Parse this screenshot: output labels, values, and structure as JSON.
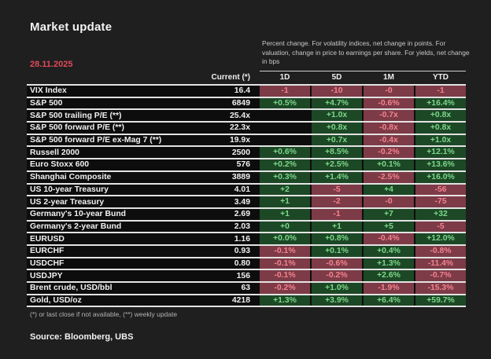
{
  "header": {
    "title": "Market update",
    "date": "28.11.2025",
    "note": "Percent change. For volatility indices, net change in points. For valuation, change in price to earnings per share. For yields,  net change in bps"
  },
  "chart_data": {
    "type": "table",
    "title": "Market update",
    "date": "28.11.2025",
    "columns": [
      "Current (*)",
      "1D",
      "5D",
      "1M",
      "YTD"
    ],
    "rows": [
      {
        "label": "VIX Index",
        "current": "16.4",
        "cells": [
          {
            "v": "-1",
            "s": "neg"
          },
          {
            "v": "-10",
            "s": "neg"
          },
          {
            "v": "-0",
            "s": "neg"
          },
          {
            "v": "-1",
            "s": "neg"
          }
        ]
      },
      {
        "label": "S&P 500",
        "current": "6849",
        "cells": [
          {
            "v": "+0.5%",
            "s": "pos"
          },
          {
            "v": "+4.7%",
            "s": "pos"
          },
          {
            "v": "-0.6%",
            "s": "neg"
          },
          {
            "v": "+16.4%",
            "s": "pos"
          }
        ]
      },
      {
        "label": "S&P 500 trailing P/E (**)",
        "current": "25.4x",
        "cells": [
          {
            "v": "",
            "s": "empty"
          },
          {
            "v": "+1.0x",
            "s": "pos"
          },
          {
            "v": "-0.7x",
            "s": "neg"
          },
          {
            "v": "+0.8x",
            "s": "pos"
          }
        ]
      },
      {
        "label": "S&P 500 forward P/E (**)",
        "current": "22.3x",
        "cells": [
          {
            "v": "",
            "s": "empty"
          },
          {
            "v": "+0.8x",
            "s": "pos"
          },
          {
            "v": "-0.8x",
            "s": "neg"
          },
          {
            "v": "+0.8x",
            "s": "pos"
          }
        ]
      },
      {
        "label": "S&P 500 forward P/E ex-Mag 7 (**)",
        "current": "19.9x",
        "cells": [
          {
            "v": "",
            "s": "empty"
          },
          {
            "v": "+0.7x",
            "s": "pos"
          },
          {
            "v": "-0.4x",
            "s": "neg"
          },
          {
            "v": "+1.0x",
            "s": "pos"
          }
        ]
      },
      {
        "label": "Russell 2000",
        "current": "2500",
        "cells": [
          {
            "v": "+0.6%",
            "s": "pos"
          },
          {
            "v": "+8.5%",
            "s": "pos"
          },
          {
            "v": "-0.2%",
            "s": "neg"
          },
          {
            "v": "+12.1%",
            "s": "pos"
          }
        ]
      },
      {
        "label": "Euro Stoxx 600",
        "current": "576",
        "cells": [
          {
            "v": "+0.2%",
            "s": "pos"
          },
          {
            "v": "+2.5%",
            "s": "pos"
          },
          {
            "v": "+0.1%",
            "s": "pos"
          },
          {
            "v": "+13.6%",
            "s": "pos"
          }
        ]
      },
      {
        "label": "Shanghai Composite",
        "current": "3889",
        "cells": [
          {
            "v": "+0.3%",
            "s": "pos"
          },
          {
            "v": "+1.4%",
            "s": "pos"
          },
          {
            "v": "-2.5%",
            "s": "neg"
          },
          {
            "v": "+16.0%",
            "s": "pos"
          }
        ]
      },
      {
        "label": "US 10-year Treasury",
        "current": "4.01",
        "cells": [
          {
            "v": "+2",
            "s": "pos"
          },
          {
            "v": "-5",
            "s": "neg"
          },
          {
            "v": "+4",
            "s": "pos"
          },
          {
            "v": "-56",
            "s": "neg"
          }
        ]
      },
      {
        "label": "US 2-year Treasury",
        "current": "3.49",
        "cells": [
          {
            "v": "+1",
            "s": "pos"
          },
          {
            "v": "-2",
            "s": "neg"
          },
          {
            "v": "-0",
            "s": "neg"
          },
          {
            "v": "-75",
            "s": "neg"
          }
        ]
      },
      {
        "label": "Germany's 10-year Bund",
        "current": "2.69",
        "cells": [
          {
            "v": "+1",
            "s": "pos"
          },
          {
            "v": "-1",
            "s": "neg"
          },
          {
            "v": "+7",
            "s": "pos"
          },
          {
            "v": "+32",
            "s": "pos"
          }
        ]
      },
      {
        "label": "Germany's 2-year Bund",
        "current": "2.03",
        "cells": [
          {
            "v": "+0",
            "s": "pos"
          },
          {
            "v": "+1",
            "s": "pos"
          },
          {
            "v": "+5",
            "s": "pos"
          },
          {
            "v": "-5",
            "s": "neg"
          }
        ]
      },
      {
        "label": "EURUSD",
        "current": "1.16",
        "cells": [
          {
            "v": "+0.0%",
            "s": "pos"
          },
          {
            "v": "+0.8%",
            "s": "pos"
          },
          {
            "v": "-0.4%",
            "s": "neg"
          },
          {
            "v": "+12.0%",
            "s": "pos"
          }
        ]
      },
      {
        "label": "EURCHF",
        "current": "0.93",
        "cells": [
          {
            "v": "-0.1%",
            "s": "neg"
          },
          {
            "v": "+0.1%",
            "s": "pos"
          },
          {
            "v": "+0.4%",
            "s": "pos"
          },
          {
            "v": "-0.8%",
            "s": "neg"
          }
        ]
      },
      {
        "label": "USDCHF",
        "current": "0.80",
        "cells": [
          {
            "v": "-0.1%",
            "s": "neg"
          },
          {
            "v": "-0.6%",
            "s": "neg"
          },
          {
            "v": "+1.3%",
            "s": "pos"
          },
          {
            "v": "-11.4%",
            "s": "neg"
          }
        ]
      },
      {
        "label": "USDJPY",
        "current": "156",
        "cells": [
          {
            "v": "-0.1%",
            "s": "neg"
          },
          {
            "v": "-0.2%",
            "s": "neg"
          },
          {
            "v": "+2.6%",
            "s": "pos"
          },
          {
            "v": "-0.7%",
            "s": "neg"
          }
        ]
      },
      {
        "label": "Brent crude, USD/bbl",
        "current": "63",
        "cells": [
          {
            "v": "-0.2%",
            "s": "neg"
          },
          {
            "v": "+1.0%",
            "s": "pos"
          },
          {
            "v": "-1.9%",
            "s": "neg"
          },
          {
            "v": "-15.3%",
            "s": "neg"
          }
        ]
      },
      {
        "label": "Gold,  USD/oz",
        "current": "4218",
        "cells": [
          {
            "v": "+1.3%",
            "s": "pos"
          },
          {
            "v": "+3.9%",
            "s": "pos"
          },
          {
            "v": "+6.4%",
            "s": "pos"
          },
          {
            "v": "+59.7%",
            "s": "pos"
          }
        ]
      }
    ]
  },
  "footer": {
    "footnote": "(*) or last close if not available, (**) weekly update",
    "source": "Source: Bloomberg, UBS"
  },
  "colors": {
    "page_bg": "#1f1f1f",
    "row_bg": "#0d0d0d",
    "separator": "#e3e3e3",
    "positive_bg": "#1d4826",
    "positive_text": "#7bd98a",
    "negative_bg": "#7d3b47",
    "negative_text": "#f5838f",
    "date_red": "#e04a58"
  }
}
